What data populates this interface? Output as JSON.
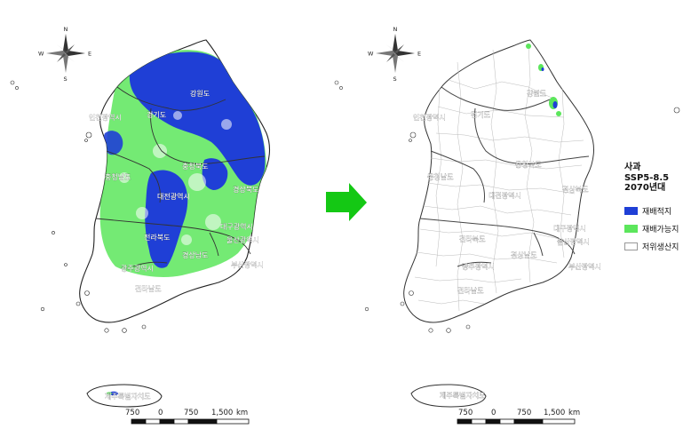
{
  "legend": {
    "title_line1": "사과",
    "title_line2": "SSP5-8.5",
    "title_line3": "2070년대",
    "items": [
      {
        "label": "재배적지",
        "color": "#1f3fd6"
      },
      {
        "label": "재배가능지",
        "color": "#5ce65c"
      },
      {
        "label": "저위생산지",
        "color": "#ffffff"
      }
    ]
  },
  "compass": {
    "north": "N",
    "south": "S",
    "east": "E",
    "west": "W"
  },
  "scalebar": {
    "ticks": [
      "750",
      "0",
      "750",
      "1,500"
    ],
    "unit": "km"
  },
  "arrow": {
    "color": "#14c814"
  },
  "left_map": {
    "region_labels": {
      "incheon": "인천광역시",
      "gyeonggi": "경기도",
      "gangwon": "강원도",
      "chungbuk": "충청북도",
      "chungnam": "충청남도",
      "daejeon": "대전광역시",
      "gyeongbuk": "경상북도",
      "jeonbuk": "전라북도",
      "daegu": "대구광역시",
      "ulsan": "울산광역시",
      "gyeongnam": "경상남도",
      "busan": "부산광역시",
      "gwangju": "광주광역시",
      "jeonnam": "전라남도",
      "jeju": "제주특별자치도"
    }
  },
  "right_map": {
    "region_labels": {
      "incheon": "인천광역시",
      "gyeonggi": "경기도",
      "gangwon": "강원도",
      "chungbuk": "충청북도",
      "chungnam": "충청남도",
      "daejeon": "대전광역시",
      "gyeongbuk": "경상북도",
      "jeonbuk": "전라북도",
      "daegu": "대구광역시",
      "ulsan": "울산광역시",
      "gyeongnam": "경상남도",
      "busan": "부산광역시",
      "gwangju": "광주광역시",
      "jeonnam": "전라남도",
      "jeju": "제주특별자치도"
    }
  }
}
